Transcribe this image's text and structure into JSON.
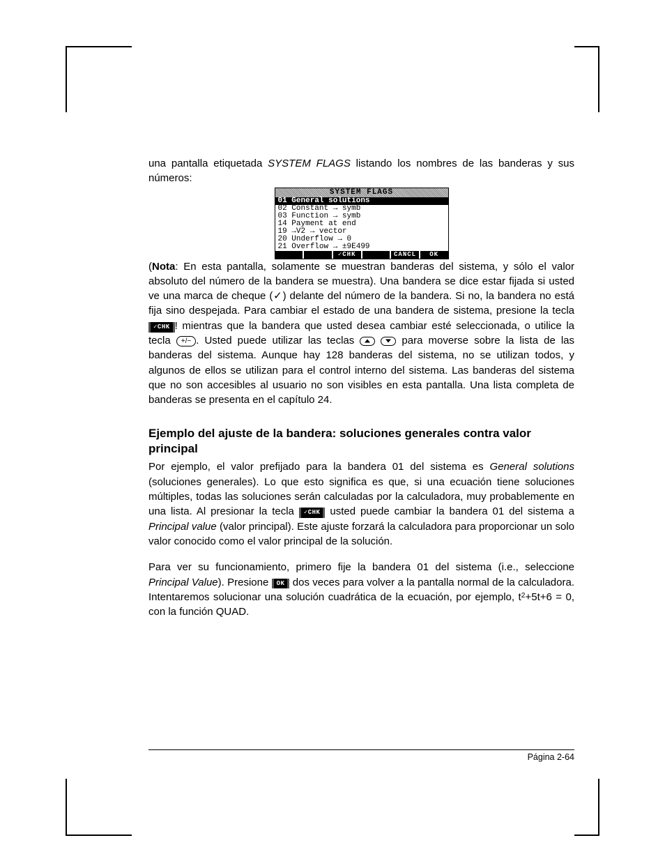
{
  "intro": {
    "line1_pre": "una pantalla etiquetada ",
    "line1_it": "SYSTEM FLAGS",
    "line1_post": " listando los nombres de las banderas y sus números:"
  },
  "lcd": {
    "title": "SYSTEM FLAGS",
    "selected": "01 General solutions",
    "lines": [
      "02 Constant → symb",
      "03 Function → symb",
      "14 Payment at end",
      "19 →V2 → vector",
      "20 Underflow → 0",
      "21 Overflow → ±9E499"
    ],
    "menu": [
      "",
      "",
      "✓CHK",
      "",
      "CANCL",
      "OK"
    ]
  },
  "nota": {
    "label": "Nota",
    "t1": ": En esta pantalla, solamente se muestran banderas del sistema, y sólo el valor absoluto del número de la bandera se muestra). Una bandera se dice estar fijada si usted ve una marca de cheque (✓) delante del número de la bandera. Si no, la bandera no está fija sino despejada. Para cambiar el estado de una bandera de sistema, presione la tecla ",
    "chk": "✓CHK",
    "t2": "! mientras que la bandera que usted desea cambiar esté seleccionada, o utilice la tecla ",
    "pm": "+/−",
    "t3": ". Usted puede utilizar las teclas ",
    "t4": " para moverse sobre la lista de las banderas del sistema. Aunque hay 128 banderas del sistema, no se utilizan todos, y algunos de ellos se utilizan para el control interno del sistema. Las banderas del sistema que no son accesibles al usuario no son visibles en esta pantalla. Una lista completa de banderas se presenta en el capítulo 24."
  },
  "section_heading": "Ejemplo del ajuste de la bandera: soluciones generales contra valor principal",
  "p3": {
    "t1": "Por ejemplo, el valor prefijado para la bandera 01 del sistema es ",
    "it1": "General solutions",
    "t2": " (soluciones generales).  Lo que esto significa es que, si una ecuación tiene soluciones múltiples, todas las soluciones serán calculadas por la calculadora, muy probablemente en una lista.  Al presionar la tecla ",
    "chk": "✓CHK",
    "t3": " usted puede cambiar la bandera 01 del sistema a ",
    "it2": "Principal value",
    "t4": " (valor principal). Este ajuste forzará la calculadora para proporcionar un solo valor conocido como el valor principal de la solución."
  },
  "p4": {
    "t1": "Para ver su funcionamiento, primero fije la bandera 01 del sistema (i.e., seleccione ",
    "it1": "Principal Value",
    "t2": ").  Presione ",
    "ok": "OK",
    "t3": " dos veces para volver a la pantalla normal de la calculadora. Intentaremos solucionar una solución cuadrática de la ecuación, por ejemplo,  t",
    "t4": "+5t+6  = 0, con la función QUAD."
  },
  "footer": "Página 2-64"
}
